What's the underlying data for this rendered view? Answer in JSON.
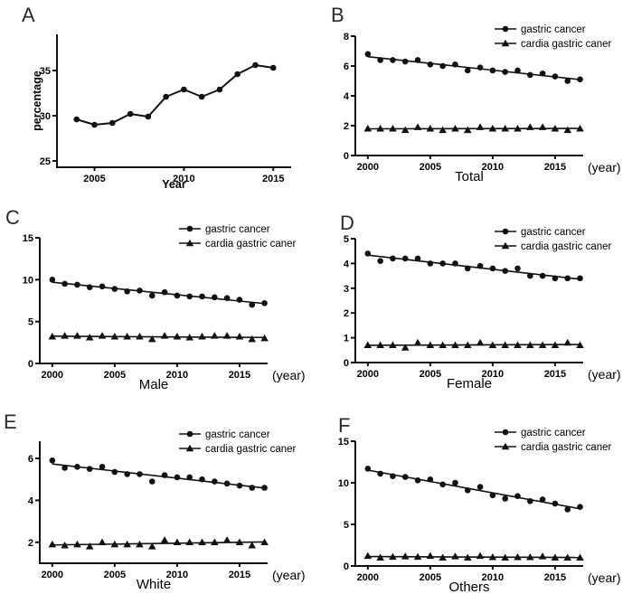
{
  "figure_colors": {
    "ink": "#111111",
    "background": "#ffffff"
  },
  "legend_labels": {
    "series1": "gastric cancer",
    "series2": "cardia gastric caner"
  },
  "chart_data": [
    {
      "panel_label": "A",
      "type": "line",
      "title": "",
      "xlabel": "Year",
      "ylabel": "percentage",
      "x_suffix": "",
      "legend": false,
      "legend_position": "none",
      "grid": false,
      "x": [
        2004,
        2005,
        2006,
        2007,
        2008,
        2009,
        2010,
        2011,
        2012,
        2013,
        2014,
        2015
      ],
      "series": [
        {
          "name": "percentage",
          "marker": "circle",
          "connect": true,
          "trend": false,
          "values": [
            29.6,
            29.0,
            29.2,
            30.2,
            29.9,
            32.1,
            32.9,
            32.1,
            32.9,
            34.6,
            35.6,
            35.3
          ]
        }
      ],
      "xticks": [
        2005,
        2010,
        2015
      ],
      "yticks": [
        25,
        30,
        35
      ],
      "xlim": [
        2002.9,
        2016.0
      ],
      "ylim": [
        24.3,
        39.0
      ]
    },
    {
      "panel_label": "B",
      "type": "scatter",
      "title": "",
      "xlabel": "Total",
      "ylabel": "",
      "x_suffix": "(year)",
      "legend": true,
      "legend_position": "top-right",
      "grid": false,
      "x": [
        2000,
        2001,
        2002,
        2003,
        2004,
        2005,
        2006,
        2007,
        2008,
        2009,
        2010,
        2011,
        2012,
        2013,
        2014,
        2015,
        2016,
        2017
      ],
      "series": [
        {
          "name": "gastric cancer",
          "marker": "circle",
          "connect": false,
          "trend": true,
          "values": [
            6.8,
            6.4,
            6.4,
            6.3,
            6.4,
            6.1,
            6.0,
            6.1,
            5.7,
            5.9,
            5.7,
            5.6,
            5.7,
            5.4,
            5.5,
            5.3,
            5.0,
            5.1
          ]
        },
        {
          "name": "cardia gastric caner",
          "marker": "triangle",
          "connect": false,
          "trend": true,
          "values": [
            1.8,
            1.8,
            1.8,
            1.7,
            1.9,
            1.8,
            1.7,
            1.8,
            1.7,
            1.9,
            1.8,
            1.8,
            1.8,
            1.9,
            1.9,
            1.8,
            1.7,
            1.8
          ]
        }
      ],
      "xticks": [
        2000,
        2005,
        2010,
        2015
      ],
      "yticks": [
        0,
        2,
        4,
        6,
        8
      ],
      "xlim": [
        1999.0,
        2017.25
      ],
      "ylim": [
        0,
        8
      ]
    },
    {
      "panel_label": "C",
      "type": "scatter",
      "title": "",
      "xlabel": "Male",
      "ylabel": "",
      "x_suffix": "(year)",
      "legend": true,
      "legend_position": "top-right",
      "grid": false,
      "x": [
        2000,
        2001,
        2002,
        2003,
        2004,
        2005,
        2006,
        2007,
        2008,
        2009,
        2010,
        2011,
        2012,
        2013,
        2014,
        2015,
        2016,
        2017
      ],
      "series": [
        {
          "name": "gastric cancer",
          "marker": "circle",
          "connect": false,
          "trend": true,
          "values": [
            10.0,
            9.5,
            9.4,
            9.1,
            9.2,
            8.9,
            8.6,
            8.7,
            8.1,
            8.5,
            8.1,
            8.0,
            8.0,
            7.9,
            7.8,
            7.6,
            7.0,
            7.2
          ]
        },
        {
          "name": "cardia gastric caner",
          "marker": "triangle",
          "connect": false,
          "trend": true,
          "values": [
            3.2,
            3.3,
            3.3,
            3.1,
            3.3,
            3.2,
            3.2,
            3.2,
            2.9,
            3.3,
            3.2,
            3.1,
            3.2,
            3.3,
            3.3,
            3.2,
            2.9,
            3.0
          ]
        }
      ],
      "xticks": [
        2000,
        2005,
        2010,
        2015
      ],
      "yticks": [
        0,
        5,
        10,
        15
      ],
      "xlim": [
        1999.0,
        2017.25
      ],
      "ylim": [
        0,
        15
      ]
    },
    {
      "panel_label": "D",
      "type": "scatter",
      "title": "",
      "xlabel": "Female",
      "ylabel": "",
      "x_suffix": "(year)",
      "legend": true,
      "legend_position": "top-right",
      "grid": false,
      "x": [
        2000,
        2001,
        2002,
        2003,
        2004,
        2005,
        2006,
        2007,
        2008,
        2009,
        2010,
        2011,
        2012,
        2013,
        2014,
        2015,
        2016,
        2017
      ],
      "series": [
        {
          "name": "gastric cancer",
          "marker": "circle",
          "connect": false,
          "trend": true,
          "values": [
            4.4,
            4.1,
            4.2,
            4.2,
            4.2,
            4.0,
            4.0,
            4.0,
            3.8,
            3.9,
            3.8,
            3.7,
            3.8,
            3.5,
            3.5,
            3.4,
            3.4,
            3.4
          ]
        },
        {
          "name": "cardia gastric caner",
          "marker": "triangle",
          "connect": false,
          "trend": true,
          "values": [
            0.7,
            0.7,
            0.7,
            0.6,
            0.8,
            0.7,
            0.7,
            0.7,
            0.7,
            0.8,
            0.7,
            0.7,
            0.7,
            0.7,
            0.7,
            0.7,
            0.8,
            0.7
          ]
        }
      ],
      "xticks": [
        2000,
        2005,
        2010,
        2015
      ],
      "yticks": [
        0,
        1,
        2,
        3,
        4,
        5
      ],
      "xlim": [
        1999.0,
        2017.25
      ],
      "ylim": [
        0,
        5
      ]
    },
    {
      "panel_label": "E",
      "type": "scatter",
      "title": "",
      "xlabel": "White",
      "ylabel": "",
      "x_suffix": "(year)",
      "legend": true,
      "legend_position": "top-right",
      "grid": false,
      "x": [
        2000,
        2001,
        2002,
        2003,
        2004,
        2005,
        2006,
        2007,
        2008,
        2009,
        2010,
        2011,
        2012,
        2013,
        2014,
        2015,
        2016,
        2017
      ],
      "series": [
        {
          "name": "gastric cancer",
          "marker": "circle",
          "connect": false,
          "trend": true,
          "values": [
            5.9,
            5.55,
            5.6,
            5.5,
            5.6,
            5.35,
            5.25,
            5.25,
            4.9,
            5.2,
            5.1,
            5.1,
            5.0,
            4.9,
            4.8,
            4.7,
            4.6,
            4.6
          ]
        },
        {
          "name": "cardia gastric caner",
          "marker": "triangle",
          "connect": false,
          "trend": true,
          "values": [
            1.9,
            1.85,
            1.9,
            1.8,
            2.0,
            1.9,
            1.9,
            1.9,
            1.8,
            2.1,
            2.0,
            2.0,
            2.0,
            2.0,
            2.1,
            2.0,
            1.85,
            2.0
          ]
        }
      ],
      "xticks": [
        2000,
        2005,
        2010,
        2015
      ],
      "yticks": [
        2,
        4,
        6
      ],
      "xlim": [
        1999.0,
        2017.25
      ],
      "ylim": [
        1.0,
        6.82
      ]
    },
    {
      "panel_label": "F",
      "type": "scatter",
      "title": "",
      "xlabel": "Others",
      "ylabel": "",
      "x_suffix": "(year)",
      "legend": true,
      "legend_position": "top-right",
      "grid": false,
      "x": [
        2000,
        2001,
        2002,
        2003,
        2004,
        2005,
        2006,
        2007,
        2008,
        2009,
        2010,
        2011,
        2012,
        2013,
        2014,
        2015,
        2016,
        2017
      ],
      "series": [
        {
          "name": "gastric cancer",
          "marker": "circle",
          "connect": false,
          "trend": true,
          "values": [
            11.7,
            11.1,
            10.8,
            10.7,
            10.3,
            10.4,
            9.8,
            10.0,
            9.1,
            9.5,
            8.5,
            8.1,
            8.4,
            7.8,
            8.0,
            7.5,
            6.8,
            7.1
          ]
        },
        {
          "name": "cardia gastric caner",
          "marker": "triangle",
          "connect": false,
          "trend": true,
          "values": [
            1.2,
            1.0,
            1.1,
            1.15,
            1.1,
            1.2,
            1.0,
            1.15,
            1.0,
            1.2,
            1.05,
            1.0,
            1.05,
            1.05,
            1.15,
            1.0,
            1.0,
            1.0
          ]
        }
      ],
      "xticks": [
        2000,
        2005,
        2010,
        2015
      ],
      "yticks": [
        0,
        5,
        10,
        15
      ],
      "xlim": [
        1999.0,
        2017.25
      ],
      "ylim": [
        0,
        15
      ]
    }
  ]
}
